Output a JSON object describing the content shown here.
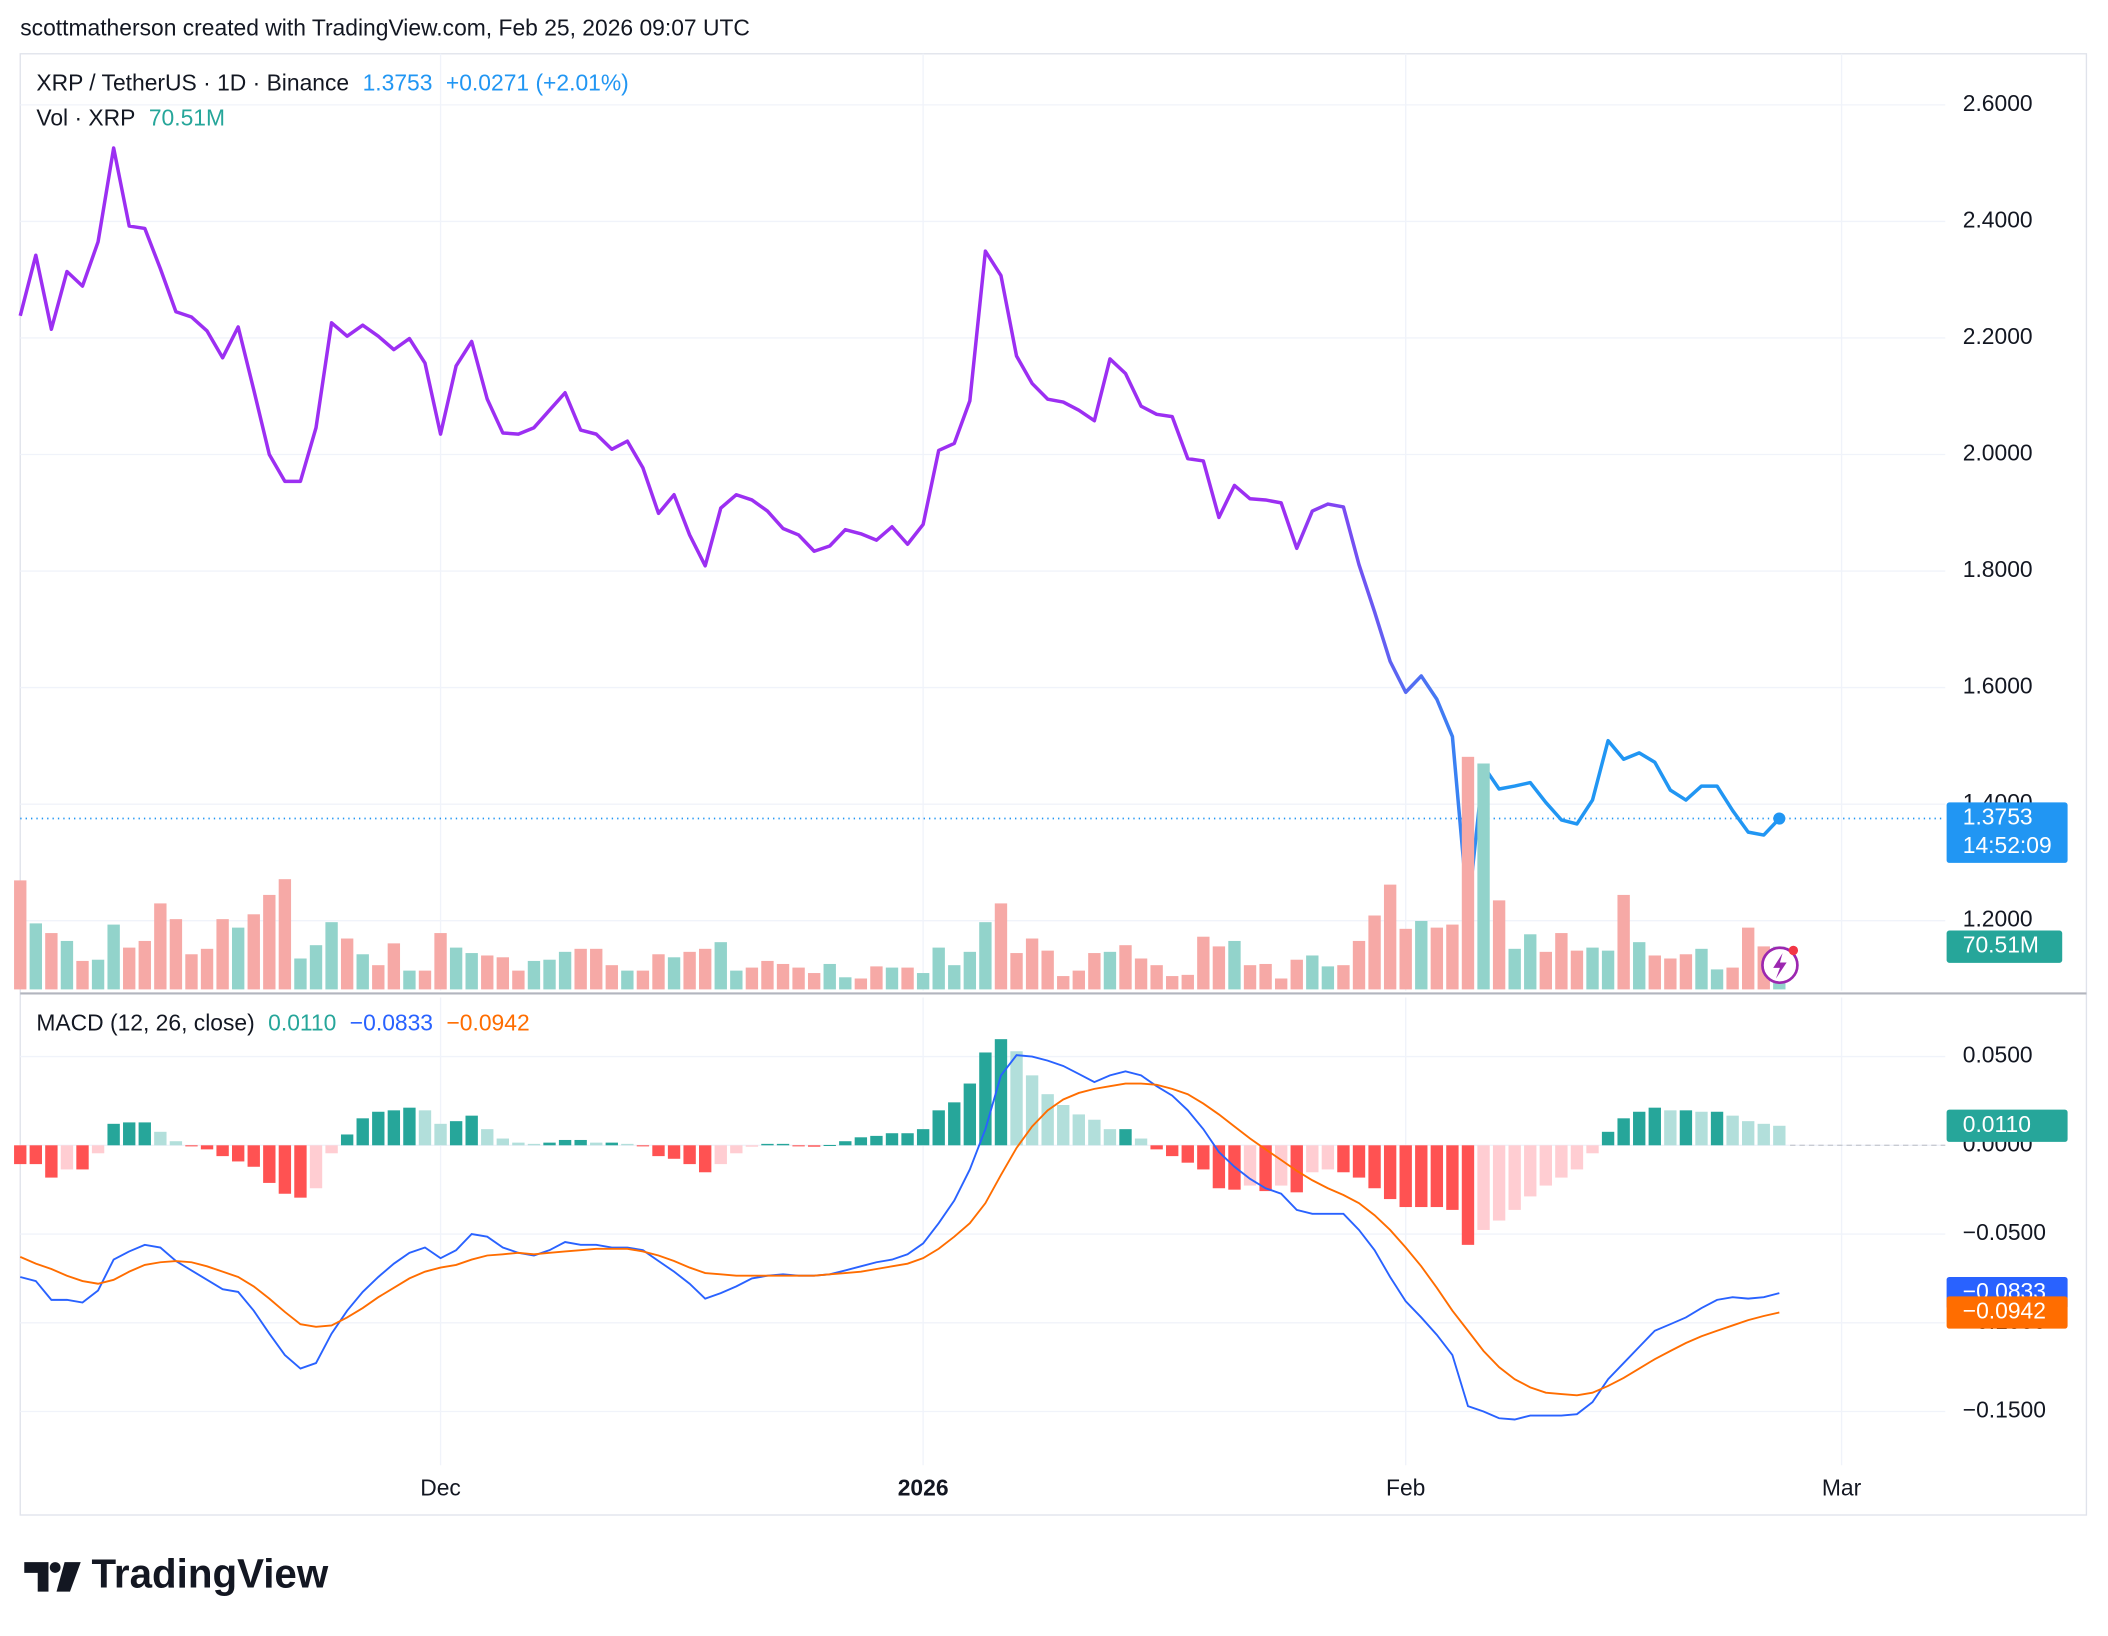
{
  "header": "scottmatherson created with TradingView.com, Feb 25, 2026 09:07 UTC",
  "logo": "TradingView",
  "chart_data": [
    {
      "type": "line",
      "change_label": "+0.0271 (+2.01%)",
      "countdown": "14:52:09",
      "ylim": [
        1.0798,
        2.6877
      ],
      "yticks": [
        {
          "value": 1.2,
          "label": "1.2000"
        },
        {
          "value": 1.4,
          "label": "1.4000"
        },
        {
          "value": 1.6,
          "label": "1.6000"
        },
        {
          "value": 1.8,
          "label": "1.8000"
        },
        {
          "value": 2.0,
          "label": "2.0000"
        },
        {
          "value": 2.2,
          "label": "2.2000"
        },
        {
          "value": 2.4,
          "label": "2.4000"
        },
        {
          "value": 2.6,
          "label": "2.6000"
        }
      ],
      "grid": true,
      "series": [
        {
          "name": "XRP / TetherUS · 1D · Binance",
          "colors": [
            "#9c2ff2",
            "#2196f3"
          ],
          "values": [
            2.238,
            2.342,
            2.215,
            2.314,
            2.289,
            2.365,
            2.526,
            2.392,
            2.388,
            2.319,
            2.245,
            2.236,
            2.212,
            2.166,
            2.219,
            2.111,
            2.0,
            1.954,
            1.954,
            2.046,
            2.226,
            2.203,
            2.222,
            2.203,
            2.18,
            2.199,
            2.157,
            2.035,
            2.152,
            2.194,
            2.095,
            2.037,
            2.035,
            2.046,
            2.076,
            2.106,
            2.042,
            2.035,
            2.009,
            2.023,
            1.977,
            1.899,
            1.931,
            1.862,
            1.809,
            1.908,
            1.931,
            1.922,
            1.903,
            1.873,
            1.862,
            1.834,
            1.843,
            1.871,
            1.864,
            1.853,
            1.876,
            1.846,
            1.88,
            2.007,
            2.019,
            2.092,
            2.349,
            2.307,
            2.169,
            2.122,
            2.095,
            2.09,
            2.076,
            2.058,
            2.164,
            2.139,
            2.083,
            2.069,
            2.065,
            1.993,
            1.989,
            1.892,
            1.947,
            1.924,
            1.922,
            1.917,
            1.839,
            1.903,
            1.915,
            1.91,
            1.811,
            1.73,
            1.645,
            1.592,
            1.62,
            1.58,
            1.516,
            1.216,
            1.465,
            1.426,
            1.431,
            1.437,
            1.403,
            1.373,
            1.366,
            1.407,
            1.509,
            1.477,
            1.488,
            1.472,
            1.424,
            1.407,
            1.431,
            1.431,
            1.389,
            1.352,
            1.347,
            1.3753
          ]
        }
      ]
    },
    {
      "type": "bar",
      "series": [
        {
          "name": "Vol · XRP",
          "colors": [
            "#92d3cb",
            "#f6a9a6"
          ],
          "value_label": "70.51M",
          "values": [
            180,
            109,
            93,
            80,
            47,
            49,
            107,
            69,
            80,
            142,
            116,
            58,
            67,
            116,
            102,
            124,
            156,
            182,
            51,
            73,
            111,
            84,
            58,
            40,
            76,
            31,
            31,
            93,
            69,
            60,
            56,
            53,
            31,
            47,
            49,
            62,
            67,
            67,
            40,
            31,
            31,
            58,
            53,
            62,
            67,
            78,
            31,
            36,
            47,
            42,
            36,
            27,
            42,
            20,
            18,
            38,
            36,
            36,
            27,
            69,
            40,
            62,
            111,
            142,
            60,
            84,
            64,
            22,
            31,
            60,
            62,
            73,
            51,
            40,
            22,
            24,
            87,
            71,
            80,
            40,
            42,
            18,
            49,
            56,
            38,
            40,
            80,
            122,
            173,
            100,
            113,
            102,
            107,
            384,
            373,
            147,
            67,
            91,
            62,
            93,
            64,
            69,
            64,
            156,
            78,
            56,
            51,
            58,
            67,
            33,
            36,
            102,
            71,
            70.51
          ]
        }
      ]
    },
    {
      "type": "macd",
      "title": "MACD (12, 26, close)",
      "ylim": [
        -0.1803,
        0.0833
      ],
      "yticks": [
        {
          "value": -0.15,
          "label": "−0.1500"
        },
        {
          "value": -0.1,
          "label": "−0.1000"
        },
        {
          "value": -0.05,
          "label": "−0.0500"
        },
        {
          "value": 0,
          "label": "0.0000"
        },
        {
          "value": 0.05,
          "label": "0.0500"
        }
      ],
      "xlim": [
        0,
        123.66
      ],
      "xticks": [
        {
          "value": 27,
          "label": "Dec"
        },
        {
          "value": 58,
          "label": "2026"
        },
        {
          "value": 89,
          "label": "Feb"
        },
        {
          "value": 117,
          "label": "Mar"
        }
      ],
      "grid": true,
      "series": [
        {
          "type": "histogram",
          "colors": [
            "#26a69a",
            "#b2dfdb",
            "#ff5252",
            "#ffcdd2"
          ],
          "value_label": "0.0110",
          "values": [
            -0.0106,
            -0.0106,
            -0.0182,
            -0.0136,
            -0.0136,
            -0.0045,
            0.0121,
            0.0129,
            0.0129,
            0.0076,
            0.0023,
            -0.0002,
            -0.0023,
            -0.0061,
            -0.0091,
            -0.0121,
            -0.0212,
            -0.0273,
            -0.0295,
            -0.0242,
            -0.0045,
            0.0061,
            0.0152,
            0.0189,
            0.0197,
            0.0212,
            0.0197,
            0.0121,
            0.0136,
            0.0167,
            0.0091,
            0.0038,
            0.0015,
            0.0008,
            0.0015,
            0.003,
            0.003,
            0.0015,
            0.0015,
            0.0008,
            -0.0005,
            -0.0061,
            -0.0076,
            -0.0106,
            -0.0152,
            -0.0106,
            -0.0045,
            -0.0008,
            0.0008,
            0.0008,
            -0.0002,
            -0.0008,
            0.0002,
            0.0023,
            0.0045,
            0.0053,
            0.0068,
            0.0068,
            0.0091,
            0.0197,
            0.0242,
            0.0348,
            0.0523,
            0.0598,
            0.053,
            0.0394,
            0.0288,
            0.0227,
            0.0174,
            0.0144,
            0.0091,
            0.0091,
            0.0038,
            -0.0023,
            -0.0061,
            -0.0098,
            -0.0136,
            -0.0242,
            -0.025,
            -0.0227,
            -0.0258,
            -0.0227,
            -0.0265,
            -0.0152,
            -0.0136,
            -0.0152,
            -0.0182,
            -0.0242,
            -0.0303,
            -0.0348,
            -0.0348,
            -0.0348,
            -0.0364,
            -0.0561,
            -0.0477,
            -0.0424,
            -0.0364,
            -0.0288,
            -0.0227,
            -0.0182,
            -0.0136,
            -0.0045,
            0.0076,
            0.0152,
            0.0189,
            0.0212,
            0.0197,
            0.0197,
            0.0189,
            0.0189,
            0.0167,
            0.0136,
            0.0121,
            0.011
          ]
        },
        {
          "type": "line",
          "color": "#2962ff",
          "value_label": "−0.0833",
          "values": [
            -0.0742,
            -0.0765,
            -0.0871,
            -0.0871,
            -0.0886,
            -0.0818,
            -0.0644,
            -0.0598,
            -0.0561,
            -0.0576,
            -0.0652,
            -0.0705,
            -0.0758,
            -0.0811,
            -0.0826,
            -0.0932,
            -0.1061,
            -0.1182,
            -0.1258,
            -0.1227,
            -0.1061,
            -0.0932,
            -0.0826,
            -0.0742,
            -0.0667,
            -0.0606,
            -0.0576,
            -0.0636,
            -0.0591,
            -0.05,
            -0.0515,
            -0.0576,
            -0.0606,
            -0.0621,
            -0.0591,
            -0.0545,
            -0.0561,
            -0.0561,
            -0.0576,
            -0.0576,
            -0.0591,
            -0.0652,
            -0.0712,
            -0.078,
            -0.0864,
            -0.0833,
            -0.0795,
            -0.075,
            -0.0735,
            -0.0727,
            -0.0735,
            -0.0735,
            -0.0727,
            -0.0705,
            -0.0682,
            -0.0659,
            -0.0644,
            -0.0614,
            -0.0553,
            -0.0439,
            -0.0311,
            -0.0136,
            0.0091,
            0.0394,
            0.0508,
            0.05,
            0.0477,
            0.0447,
            0.0402,
            0.0356,
            0.0394,
            0.0417,
            0.0394,
            0.0333,
            0.028,
            0.0197,
            0.0091,
            -0.0038,
            -0.0121,
            -0.0189,
            -0.0242,
            -0.0273,
            -0.0364,
            -0.0386,
            -0.0386,
            -0.0386,
            -0.0477,
            -0.0591,
            -0.0742,
            -0.0879,
            -0.097,
            -0.1068,
            -0.1182,
            -0.147,
            -0.15,
            -0.1538,
            -0.1545,
            -0.1523,
            -0.1523,
            -0.1523,
            -0.1515,
            -0.1447,
            -0.1318,
            -0.1227,
            -0.1136,
            -0.1045,
            -0.1008,
            -0.097,
            -0.0917,
            -0.0871,
            -0.0856,
            -0.0864,
            -0.0856,
            -0.0833
          ]
        },
        {
          "type": "line",
          "color": "#ff6d00",
          "value_label": "−0.0942",
          "values": [
            -0.0629,
            -0.0667,
            -0.0697,
            -0.0735,
            -0.0765,
            -0.078,
            -0.0758,
            -0.0712,
            -0.0674,
            -0.0659,
            -0.0652,
            -0.0659,
            -0.0682,
            -0.0712,
            -0.0742,
            -0.0795,
            -0.0864,
            -0.0939,
            -0.1008,
            -0.1023,
            -0.1015,
            -0.097,
            -0.0917,
            -0.0856,
            -0.0803,
            -0.075,
            -0.0712,
            -0.0689,
            -0.0674,
            -0.0644,
            -0.0621,
            -0.0614,
            -0.0606,
            -0.0614,
            -0.0606,
            -0.0598,
            -0.0591,
            -0.0583,
            -0.0583,
            -0.0583,
            -0.0598,
            -0.0621,
            -0.0652,
            -0.0689,
            -0.072,
            -0.0727,
            -0.0735,
            -0.0735,
            -0.0735,
            -0.0735,
            -0.0735,
            -0.0735,
            -0.0727,
            -0.072,
            -0.0712,
            -0.0697,
            -0.0682,
            -0.0667,
            -0.0636,
            -0.0583,
            -0.0515,
            -0.0439,
            -0.0326,
            -0.0167,
            -0.0015,
            0.0106,
            0.0197,
            0.0258,
            0.0295,
            0.0318,
            0.0333,
            0.0348,
            0.0348,
            0.0341,
            0.0318,
            0.0288,
            0.0235,
            0.0174,
            0.0106,
            0.0038,
            -0.0023,
            -0.0083,
            -0.0144,
            -0.0197,
            -0.0242,
            -0.028,
            -0.0326,
            -0.0394,
            -0.0477,
            -0.0576,
            -0.0682,
            -0.0803,
            -0.0932,
            -0.1045,
            -0.1159,
            -0.125,
            -0.1318,
            -0.1364,
            -0.1394,
            -0.1402,
            -0.1409,
            -0.1394,
            -0.1356,
            -0.1311,
            -0.1258,
            -0.1205,
            -0.1159,
            -0.1114,
            -0.1076,
            -0.1045,
            -0.1015,
            -0.0985,
            -0.0962,
            -0.0942
          ]
        }
      ]
    }
  ]
}
